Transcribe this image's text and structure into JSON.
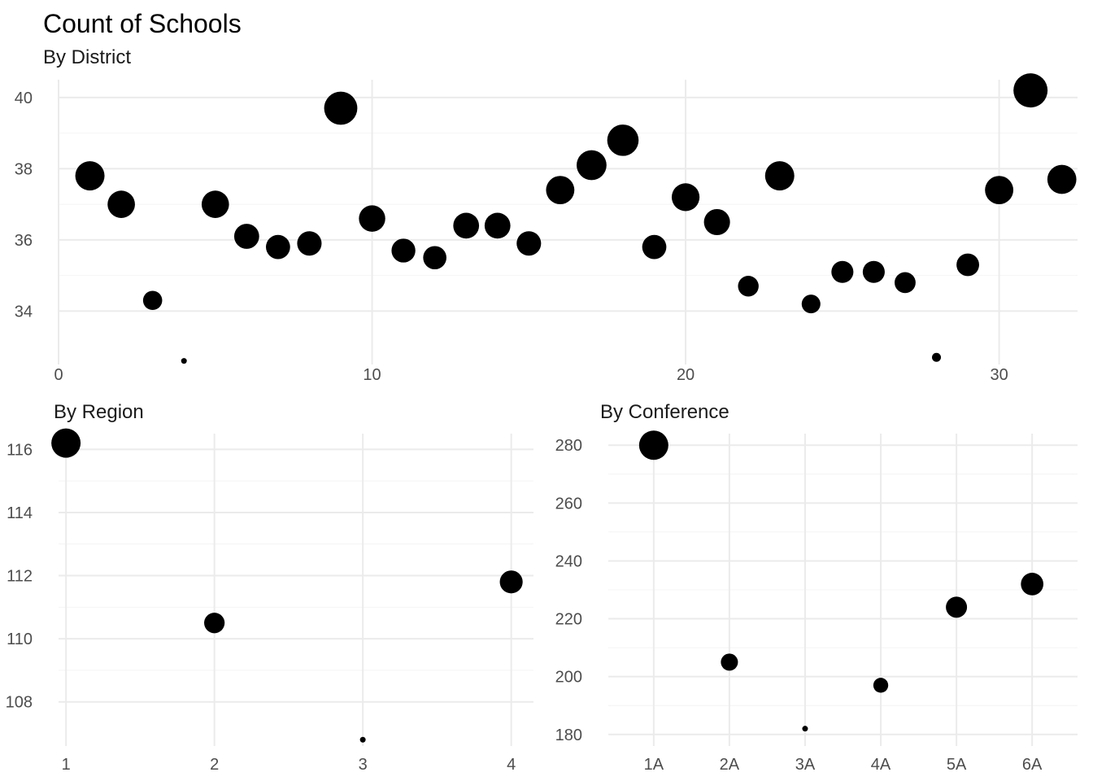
{
  "title": "Count of Schools",
  "chart_data": [
    {
      "type": "scatter",
      "subtitle": "By District",
      "x_type": "numeric",
      "xlim": [
        0,
        32.5
      ],
      "x_ticks": [
        0,
        10,
        20,
        30
      ],
      "ylim": [
        32.5,
        40.5
      ],
      "y_ticks": [
        34,
        36,
        38,
        40
      ],
      "size_encodes_y": true,
      "grid": true,
      "points": [
        {
          "x": 1,
          "y": 37.8
        },
        {
          "x": 2,
          "y": 37.0
        },
        {
          "x": 3,
          "y": 34.3
        },
        {
          "x": 4,
          "y": 32.6
        },
        {
          "x": 5,
          "y": 37.0
        },
        {
          "x": 6,
          "y": 36.1
        },
        {
          "x": 7,
          "y": 35.8
        },
        {
          "x": 8,
          "y": 35.9
        },
        {
          "x": 9,
          "y": 39.7
        },
        {
          "x": 10,
          "y": 36.6
        },
        {
          "x": 11,
          "y": 35.7
        },
        {
          "x": 12,
          "y": 35.5
        },
        {
          "x": 13,
          "y": 36.4
        },
        {
          "x": 14,
          "y": 36.4
        },
        {
          "x": 15,
          "y": 35.9
        },
        {
          "x": 16,
          "y": 37.4
        },
        {
          "x": 17,
          "y": 38.1
        },
        {
          "x": 18,
          "y": 38.8
        },
        {
          "x": 19,
          "y": 35.8
        },
        {
          "x": 20,
          "y": 37.2
        },
        {
          "x": 21,
          "y": 36.5
        },
        {
          "x": 22,
          "y": 34.7
        },
        {
          "x": 23,
          "y": 37.8
        },
        {
          "x": 24,
          "y": 34.2
        },
        {
          "x": 25,
          "y": 35.1
        },
        {
          "x": 26,
          "y": 35.1
        },
        {
          "x": 27,
          "y": 34.8
        },
        {
          "x": 28,
          "y": 32.7
        },
        {
          "x": 29,
          "y": 35.3
        },
        {
          "x": 30,
          "y": 37.4
        },
        {
          "x": 31,
          "y": 40.2
        },
        {
          "x": 32,
          "y": 37.7
        }
      ]
    },
    {
      "type": "scatter",
      "subtitle": "By Region",
      "x_type": "numeric",
      "xlim": [
        0.95,
        4.15
      ],
      "x_ticks": [
        1,
        2,
        3,
        4
      ],
      "ylim": [
        106.6,
        116.5
      ],
      "y_ticks": [
        108,
        110,
        112,
        114,
        116
      ],
      "size_encodes_y": true,
      "grid": true,
      "points": [
        {
          "x": 1,
          "y": 116.2
        },
        {
          "x": 2,
          "y": 110.5
        },
        {
          "x": 3,
          "y": 106.8
        },
        {
          "x": 4,
          "y": 111.8
        }
      ]
    },
    {
      "type": "scatter",
      "subtitle": "By Conference",
      "x_type": "categorical",
      "categories": [
        "1A",
        "2A",
        "3A",
        "4A",
        "5A",
        "6A"
      ],
      "ylim": [
        176,
        284
      ],
      "y_ticks": [
        180,
        200,
        220,
        240,
        260,
        280
      ],
      "size_encodes_y": true,
      "grid": true,
      "points": [
        {
          "x": "1A",
          "y": 280
        },
        {
          "x": "2A",
          "y": 205
        },
        {
          "x": "3A",
          "y": 182
        },
        {
          "x": "4A",
          "y": 197
        },
        {
          "x": "5A",
          "y": 224
        },
        {
          "x": "6A",
          "y": 232
        }
      ]
    }
  ]
}
